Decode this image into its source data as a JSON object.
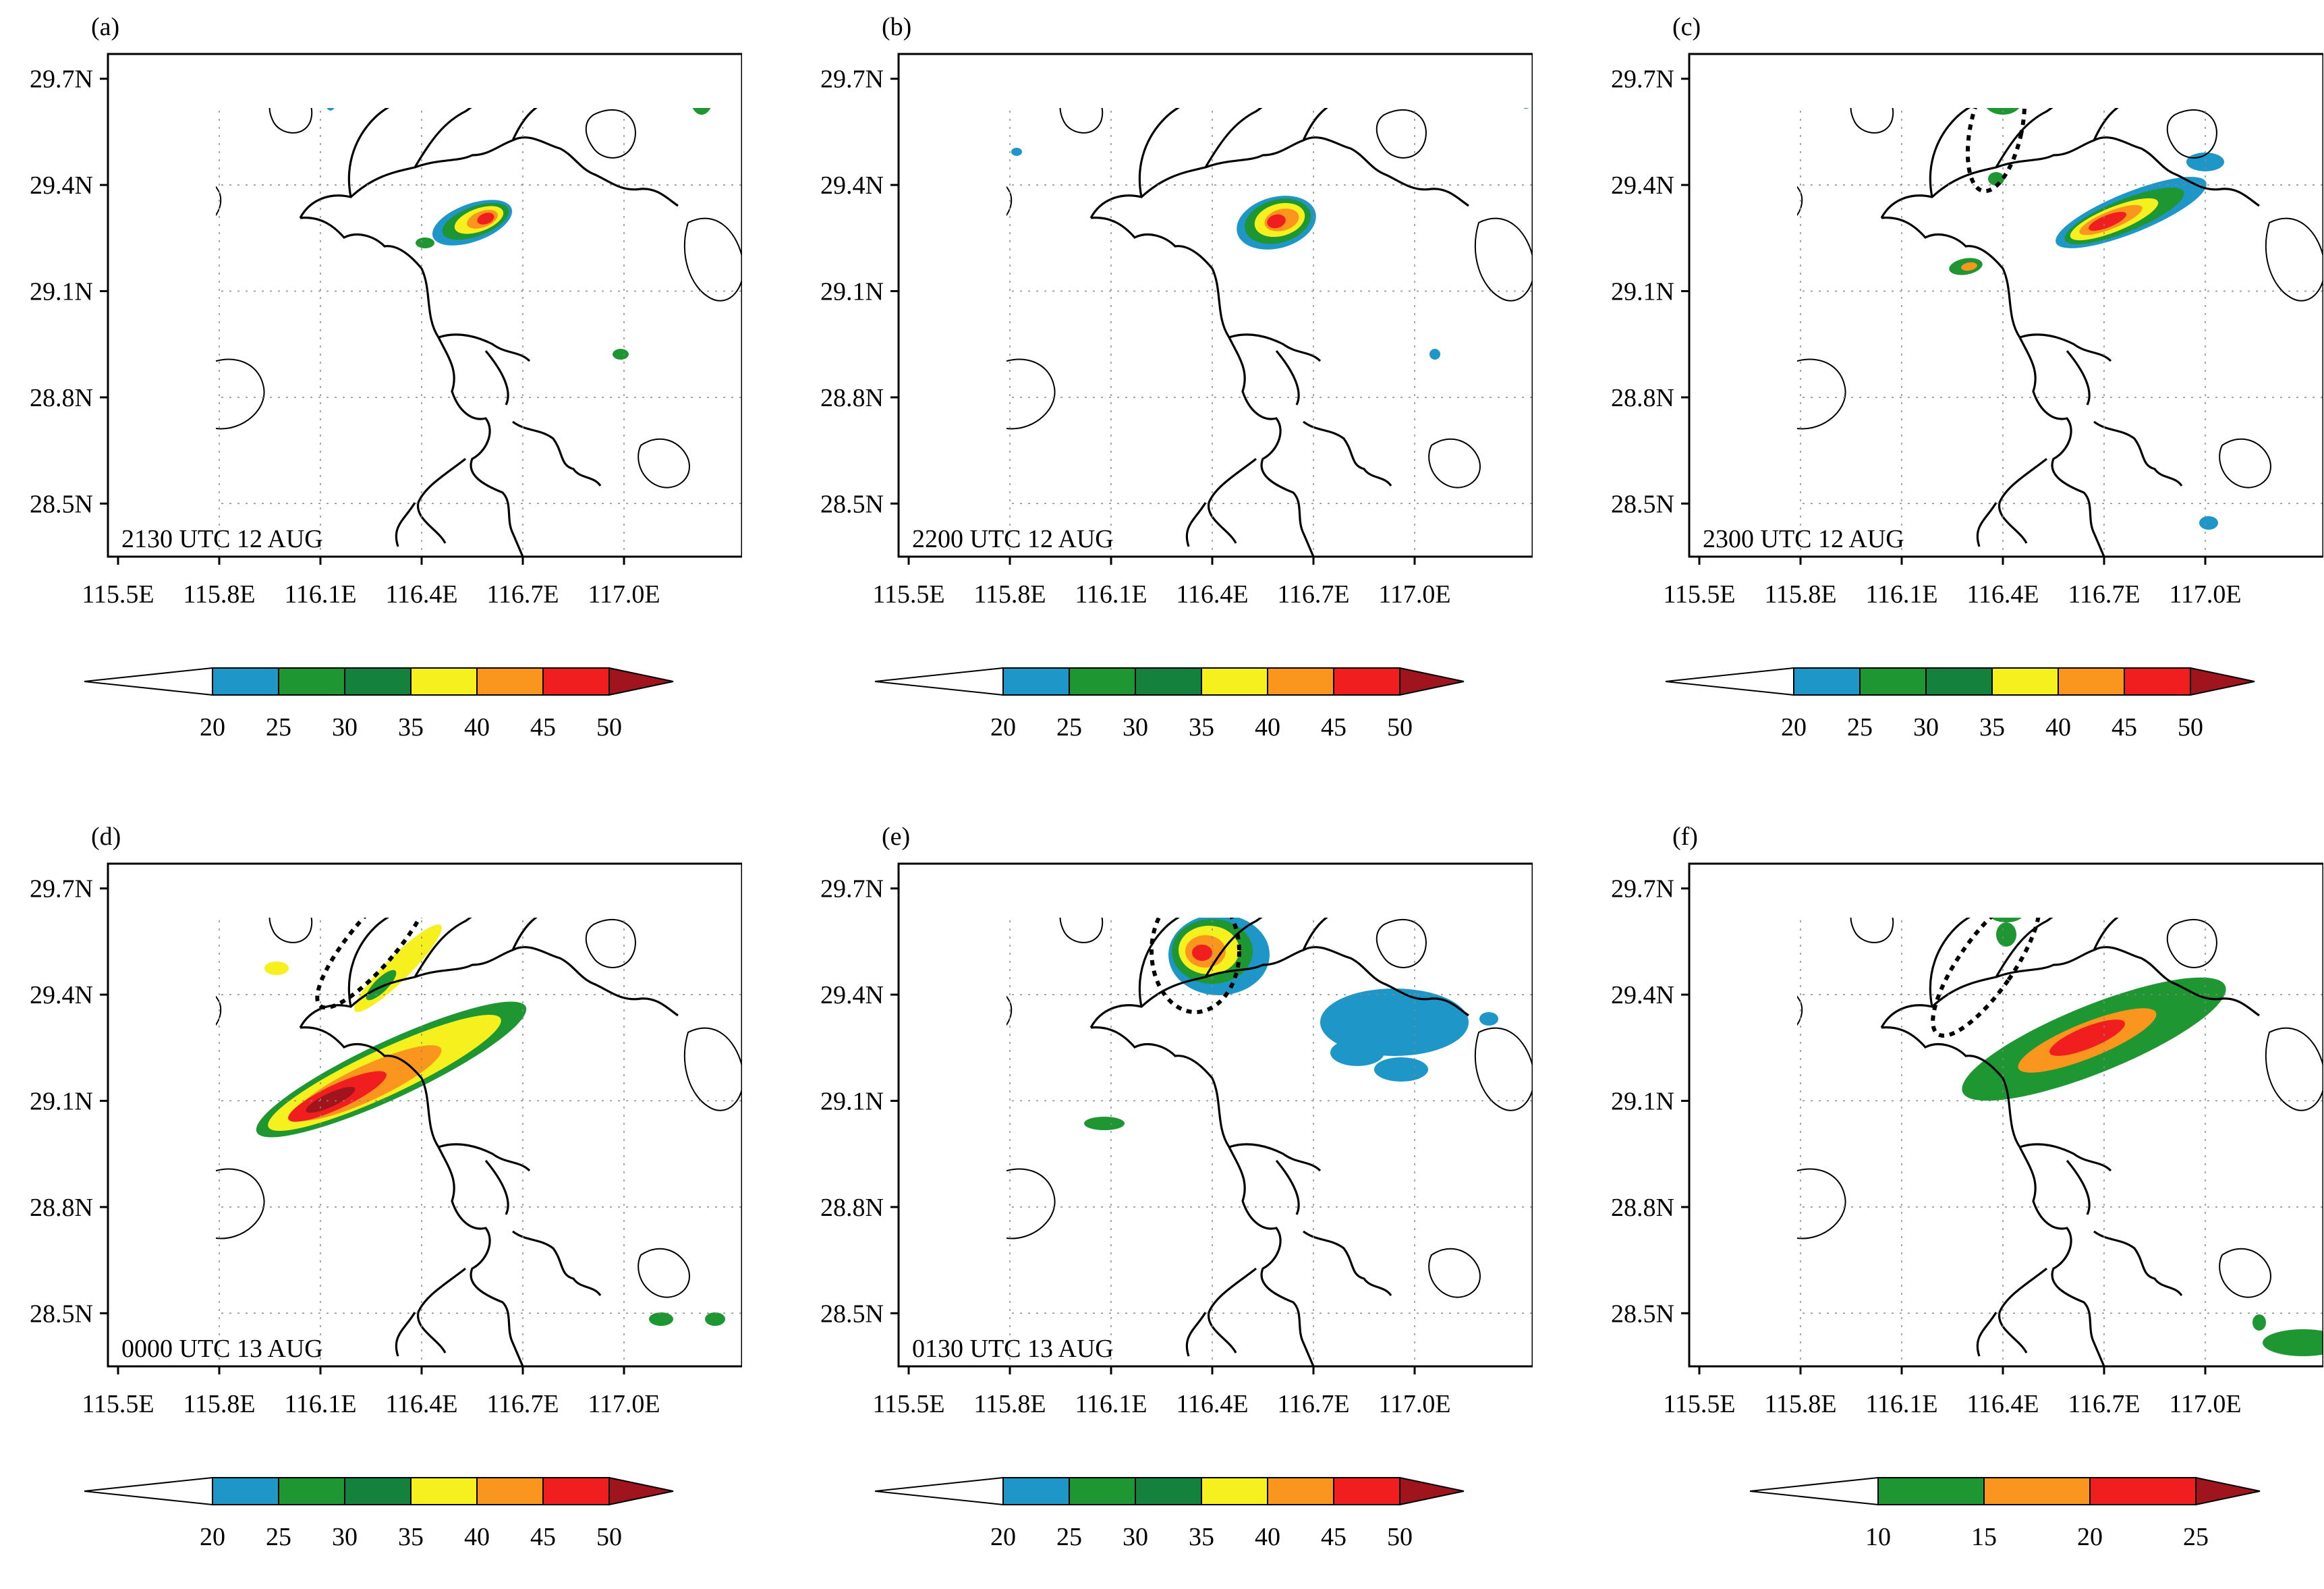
{
  "figure": {
    "lat_ticks": [
      "29.7N",
      "29.4N",
      "29.1N",
      "28.8N",
      "28.5N"
    ],
    "lon_ticks": [
      "115.5E",
      "115.8E",
      "116.1E",
      "116.4E",
      "116.7E",
      "117.0E"
    ],
    "colors": {
      "below": "#ffffff",
      "blue": "#1e96c8",
      "green1": "#1e9632",
      "green2": "#14823c",
      "yellow": "#f5f01e",
      "orange": "#fa961e",
      "red": "#f01e1e",
      "darkred": "#a0141e",
      "contour": "#000000",
      "ellipse": "#000000"
    }
  },
  "panels": [
    {
      "letter": "(a)",
      "timestamp": "2130 UTC 12 AUG",
      "ellipse": false,
      "cells": "a",
      "colorbar": {
        "levels": [
          "20",
          "25",
          "30",
          "35",
          "40",
          "45",
          "50"
        ],
        "colors": [
          "#1e96c8",
          "#1e9632",
          "#14823c",
          "#f5f01e",
          "#fa961e",
          "#f01e1e"
        ]
      }
    },
    {
      "letter": "(b)",
      "timestamp": "2200 UTC 12 AUG",
      "ellipse": false,
      "cells": "b",
      "colorbar": {
        "levels": [
          "20",
          "25",
          "30",
          "35",
          "40",
          "45",
          "50"
        ],
        "colors": [
          "#1e96c8",
          "#1e9632",
          "#14823c",
          "#f5f01e",
          "#fa961e",
          "#f01e1e"
        ]
      }
    },
    {
      "letter": "(c)",
      "timestamp": "2300 UTC 12 AUG",
      "ellipse": true,
      "cells": "c",
      "colorbar": {
        "levels": [
          "20",
          "25",
          "30",
          "35",
          "40",
          "45",
          "50"
        ],
        "colors": [
          "#1e96c8",
          "#1e9632",
          "#14823c",
          "#f5f01e",
          "#fa961e",
          "#f01e1e"
        ]
      }
    },
    {
      "letter": "(d)",
      "timestamp": "0000 UTC 13 AUG",
      "ellipse": true,
      "cells": "d",
      "colorbar": {
        "levels": [
          "20",
          "25",
          "30",
          "35",
          "40",
          "45",
          "50"
        ],
        "colors": [
          "#1e96c8",
          "#1e9632",
          "#14823c",
          "#f5f01e",
          "#fa961e",
          "#f01e1e"
        ]
      }
    },
    {
      "letter": "(e)",
      "timestamp": "0130 UTC 13 AUG",
      "ellipse": true,
      "cells": "e",
      "colorbar": {
        "levels": [
          "20",
          "25",
          "30",
          "35",
          "40",
          "45",
          "50"
        ],
        "colors": [
          "#1e96c8",
          "#1e9632",
          "#14823c",
          "#f5f01e",
          "#fa961e",
          "#f01e1e"
        ]
      }
    },
    {
      "letter": "(f)",
      "timestamp": "",
      "ellipse": true,
      "cells": "f",
      "colorbar": {
        "levels": [
          "10",
          "15",
          "20",
          "25"
        ],
        "colors": [
          "#1e9632",
          "#fa961e",
          "#f01e1e"
        ]
      }
    }
  ]
}
